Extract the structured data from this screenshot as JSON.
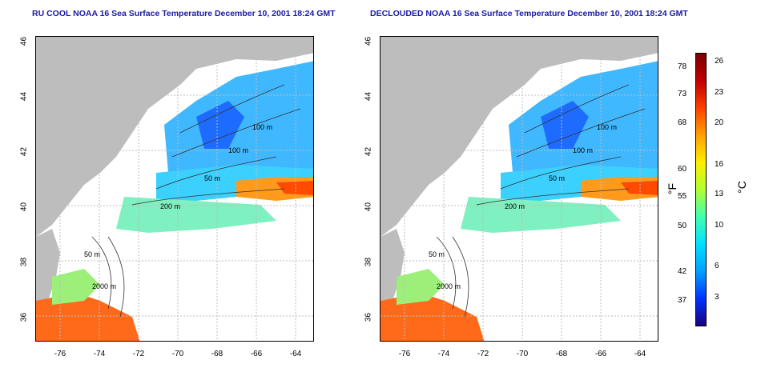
{
  "left_panel": {
    "title": "RU COOL NOAA 16 Sea Surface Temperature December 10, 2001 18:24 GMT",
    "contours": [
      "100 m",
      "100 m",
      "50 m",
      "200 m",
      "50 m",
      "2000 m"
    ]
  },
  "right_panel": {
    "title": "DECLOUDED NOAA 16 Sea Surface Temperature December 10, 2001 18:24 GMT",
    "contours": [
      "100 m",
      "100 m",
      "50 m",
      "200 m",
      "50 m",
      "2000 m"
    ]
  },
  "axes": {
    "y_ticks": [
      "46",
      "44",
      "42",
      "40",
      "38",
      "36"
    ],
    "x_ticks": [
      "-76",
      "-74",
      "-72",
      "-70",
      "-68",
      "-66",
      "-64"
    ]
  },
  "colorbar": {
    "fahrenheit_ticks": [
      "78",
      "73",
      "68",
      "60",
      "55",
      "50",
      "42",
      "37"
    ],
    "celsius_ticks": [
      "26",
      "23",
      "20",
      "16",
      "13",
      "10",
      "6",
      "3"
    ],
    "fahrenheit_unit": "°F",
    "celsius_unit": "°C",
    "colors": [
      "#1a0080",
      "#0033ff",
      "#00a0ff",
      "#00e0ff",
      "#40ffb0",
      "#b0ff30",
      "#ffee00",
      "#ffa000",
      "#ff4000",
      "#c00000",
      "#7a0000"
    ]
  }
}
